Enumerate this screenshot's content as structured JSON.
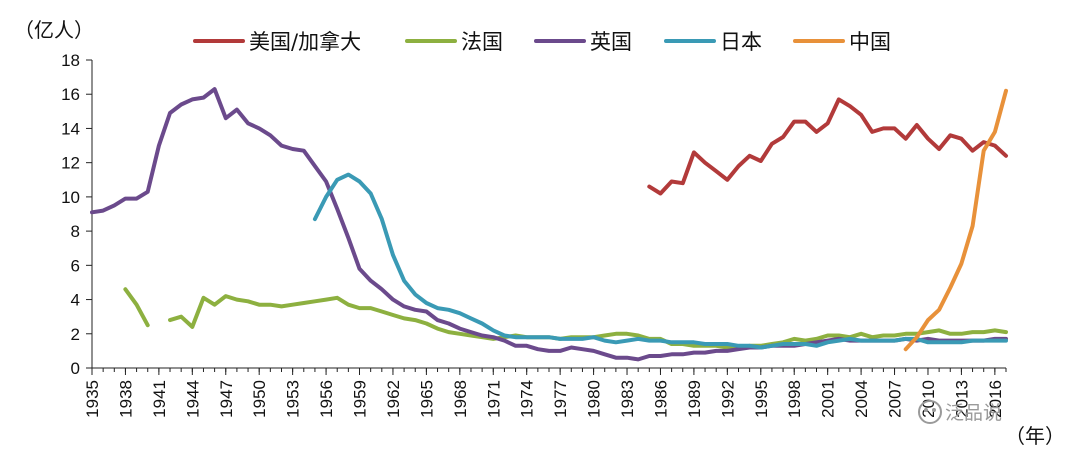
{
  "chart_data": {
    "type": "line",
    "ylabel": "（亿人）",
    "xlabel": "（年）",
    "ylim": [
      0,
      18
    ],
    "yticks": [
      0,
      2,
      4,
      6,
      8,
      10,
      12,
      14,
      16,
      18
    ],
    "xlim": [
      1935,
      2017
    ],
    "xticks": [
      1935,
      1938,
      1941,
      1944,
      1947,
      1950,
      1953,
      1956,
      1959,
      1962,
      1965,
      1968,
      1971,
      1974,
      1977,
      1980,
      1983,
      1986,
      1989,
      1992,
      1995,
      1998,
      2001,
      2004,
      2007,
      2010,
      2013,
      2016
    ],
    "xtick_labels": [
      "1935",
      "1938",
      "1941",
      "1944",
      "1947",
      "1950",
      "1953",
      "1956",
      "1959",
      "1962",
      "1965",
      "1968",
      "1971",
      "1974",
      "1977",
      "1980",
      "1983",
      "1986",
      "1989",
      "1992",
      "1995",
      "1998",
      "2001",
      "2004",
      "2007",
      "2010",
      "2013",
      "2016"
    ],
    "series": [
      {
        "name": "美国/加拿大",
        "color": "#b23a3a",
        "segments": [
          [
            [
              1985,
              10.6
            ],
            [
              1986,
              10.2
            ],
            [
              1987,
              10.9
            ],
            [
              1988,
              10.8
            ],
            [
              1989,
              12.6
            ],
            [
              1990,
              12.0
            ],
            [
              1991,
              11.5
            ],
            [
              1992,
              11.0
            ],
            [
              1993,
              11.8
            ],
            [
              1994,
              12.4
            ],
            [
              1995,
              12.1
            ],
            [
              1996,
              13.1
            ],
            [
              1997,
              13.5
            ],
            [
              1998,
              14.4
            ],
            [
              1999,
              14.4
            ],
            [
              2000,
              13.8
            ],
            [
              2001,
              14.3
            ],
            [
              2002,
              15.7
            ],
            [
              2003,
              15.3
            ],
            [
              2004,
              14.8
            ],
            [
              2005,
              13.8
            ],
            [
              2006,
              14.0
            ],
            [
              2007,
              14.0
            ],
            [
              2008,
              13.4
            ],
            [
              2009,
              14.2
            ],
            [
              2010,
              13.4
            ],
            [
              2011,
              12.8
            ],
            [
              2012,
              13.6
            ],
            [
              2013,
              13.4
            ],
            [
              2014,
              12.7
            ],
            [
              2015,
              13.2
            ],
            [
              2016,
              13.0
            ],
            [
              2017,
              12.4
            ]
          ]
        ]
      },
      {
        "name": "法国",
        "color": "#8db040",
        "segments": [
          [
            [
              1938,
              4.6
            ],
            [
              1939,
              3.7
            ],
            [
              1940,
              2.5
            ]
          ],
          [
            [
              1942,
              2.8
            ],
            [
              1943,
              3.0
            ],
            [
              1944,
              2.4
            ],
            [
              1945,
              4.1
            ],
            [
              1946,
              3.7
            ],
            [
              1947,
              4.2
            ],
            [
              1948,
              4.0
            ],
            [
              1949,
              3.9
            ],
            [
              1950,
              3.7
            ],
            [
              1951,
              3.7
            ],
            [
              1952,
              3.6
            ],
            [
              1953,
              3.7
            ],
            [
              1954,
              3.8
            ],
            [
              1955,
              3.9
            ],
            [
              1956,
              4.0
            ],
            [
              1957,
              4.1
            ],
            [
              1958,
              3.7
            ],
            [
              1959,
              3.5
            ],
            [
              1960,
              3.5
            ],
            [
              1961,
              3.3
            ],
            [
              1962,
              3.1
            ],
            [
              1963,
              2.9
            ],
            [
              1964,
              2.8
            ],
            [
              1965,
              2.6
            ],
            [
              1966,
              2.3
            ],
            [
              1967,
              2.1
            ],
            [
              1968,
              2.0
            ],
            [
              1969,
              1.9
            ],
            [
              1970,
              1.8
            ],
            [
              1971,
              1.7
            ],
            [
              1972,
              1.8
            ],
            [
              1973,
              1.9
            ],
            [
              1974,
              1.8
            ],
            [
              1975,
              1.8
            ],
            [
              1976,
              1.8
            ],
            [
              1977,
              1.7
            ],
            [
              1978,
              1.8
            ],
            [
              1979,
              1.8
            ],
            [
              1980,
              1.8
            ],
            [
              1981,
              1.9
            ],
            [
              1982,
              2.0
            ],
            [
              1983,
              2.0
            ],
            [
              1984,
              1.9
            ],
            [
              1985,
              1.7
            ],
            [
              1986,
              1.7
            ],
            [
              1987,
              1.4
            ],
            [
              1988,
              1.4
            ],
            [
              1989,
              1.3
            ],
            [
              1990,
              1.3
            ],
            [
              1991,
              1.3
            ],
            [
              1992,
              1.2
            ],
            [
              1993,
              1.2
            ],
            [
              1994,
              1.3
            ],
            [
              1995,
              1.3
            ],
            [
              1996,
              1.4
            ],
            [
              1997,
              1.5
            ],
            [
              1998,
              1.7
            ],
            [
              1999,
              1.6
            ],
            [
              2000,
              1.7
            ],
            [
              2001,
              1.9
            ],
            [
              2002,
              1.9
            ],
            [
              2003,
              1.8
            ],
            [
              2004,
              2.0
            ],
            [
              2005,
              1.8
            ],
            [
              2006,
              1.9
            ],
            [
              2007,
              1.9
            ],
            [
              2008,
              2.0
            ],
            [
              2009,
              2.0
            ],
            [
              2010,
              2.1
            ],
            [
              2011,
              2.2
            ],
            [
              2012,
              2.0
            ],
            [
              2013,
              2.0
            ],
            [
              2014,
              2.1
            ],
            [
              2015,
              2.1
            ],
            [
              2016,
              2.2
            ],
            [
              2017,
              2.1
            ]
          ]
        ]
      },
      {
        "name": "英国",
        "color": "#6b4a8c",
        "segments": [
          [
            [
              1935,
              9.1
            ],
            [
              1936,
              9.2
            ],
            [
              1937,
              9.5
            ],
            [
              1938,
              9.9
            ],
            [
              1939,
              9.9
            ],
            [
              1940,
              10.3
            ],
            [
              1941,
              13.0
            ],
            [
              1942,
              14.9
            ],
            [
              1943,
              15.4
            ],
            [
              1944,
              15.7
            ],
            [
              1945,
              15.8
            ],
            [
              1946,
              16.3
            ],
            [
              1947,
              14.6
            ],
            [
              1948,
              15.1
            ],
            [
              1949,
              14.3
            ],
            [
              1950,
              14.0
            ],
            [
              1951,
              13.6
            ],
            [
              1952,
              13.0
            ],
            [
              1953,
              12.8
            ],
            [
              1954,
              12.7
            ],
            [
              1955,
              11.8
            ],
            [
              1956,
              10.9
            ],
            [
              1957,
              9.3
            ],
            [
              1958,
              7.6
            ],
            [
              1959,
              5.8
            ],
            [
              1960,
              5.1
            ],
            [
              1961,
              4.6
            ],
            [
              1962,
              4.0
            ],
            [
              1963,
              3.6
            ],
            [
              1964,
              3.4
            ],
            [
              1965,
              3.3
            ],
            [
              1966,
              2.8
            ],
            [
              1967,
              2.6
            ],
            [
              1968,
              2.3
            ],
            [
              1969,
              2.1
            ],
            [
              1970,
              1.9
            ],
            [
              1971,
              1.8
            ],
            [
              1972,
              1.6
            ],
            [
              1973,
              1.3
            ],
            [
              1974,
              1.3
            ],
            [
              1975,
              1.1
            ],
            [
              1976,
              1.0
            ],
            [
              1977,
              1.0
            ],
            [
              1978,
              1.2
            ],
            [
              1979,
              1.1
            ],
            [
              1980,
              1.0
            ],
            [
              1981,
              0.8
            ],
            [
              1982,
              0.6
            ],
            [
              1983,
              0.6
            ],
            [
              1984,
              0.5
            ],
            [
              1985,
              0.7
            ],
            [
              1986,
              0.7
            ],
            [
              1987,
              0.8
            ],
            [
              1988,
              0.8
            ],
            [
              1989,
              0.9
            ],
            [
              1990,
              0.9
            ],
            [
              1991,
              1.0
            ],
            [
              1992,
              1.0
            ],
            [
              1993,
              1.1
            ],
            [
              1994,
              1.2
            ],
            [
              1995,
              1.2
            ],
            [
              1996,
              1.3
            ],
            [
              1997,
              1.3
            ],
            [
              1998,
              1.3
            ],
            [
              1999,
              1.4
            ],
            [
              2000,
              1.5
            ],
            [
              2001,
              1.6
            ],
            [
              2002,
              1.7
            ],
            [
              2003,
              1.6
            ],
            [
              2004,
              1.6
            ],
            [
              2005,
              1.6
            ],
            [
              2006,
              1.6
            ],
            [
              2007,
              1.6
            ],
            [
              2008,
              1.7
            ],
            [
              2009,
              1.6
            ],
            [
              2010,
              1.7
            ],
            [
              2011,
              1.6
            ],
            [
              2012,
              1.6
            ],
            [
              2013,
              1.6
            ],
            [
              2014,
              1.6
            ],
            [
              2015,
              1.6
            ],
            [
              2016,
              1.7
            ],
            [
              2017,
              1.7
            ]
          ]
        ]
      },
      {
        "name": "日本",
        "color": "#3a9ab5",
        "segments": [
          [
            [
              1955,
              8.7
            ],
            [
              1956,
              10.0
            ],
            [
              1957,
              11.0
            ],
            [
              1958,
              11.3
            ],
            [
              1959,
              10.9
            ],
            [
              1960,
              10.2
            ],
            [
              1961,
              8.7
            ],
            [
              1962,
              6.6
            ],
            [
              1963,
              5.1
            ],
            [
              1964,
              4.3
            ],
            [
              1965,
              3.8
            ],
            [
              1966,
              3.5
            ],
            [
              1967,
              3.4
            ],
            [
              1968,
              3.2
            ],
            [
              1969,
              2.9
            ],
            [
              1970,
              2.6
            ],
            [
              1971,
              2.2
            ],
            [
              1972,
              1.9
            ],
            [
              1973,
              1.8
            ],
            [
              1974,
              1.8
            ],
            [
              1975,
              1.8
            ],
            [
              1976,
              1.8
            ],
            [
              1977,
              1.7
            ],
            [
              1978,
              1.7
            ],
            [
              1979,
              1.7
            ],
            [
              1980,
              1.8
            ],
            [
              1981,
              1.6
            ],
            [
              1982,
              1.5
            ],
            [
              1983,
              1.6
            ],
            [
              1984,
              1.7
            ],
            [
              1985,
              1.6
            ],
            [
              1986,
              1.6
            ],
            [
              1987,
              1.5
            ],
            [
              1988,
              1.5
            ],
            [
              1989,
              1.5
            ],
            [
              1990,
              1.4
            ],
            [
              1991,
              1.4
            ],
            [
              1992,
              1.4
            ],
            [
              1993,
              1.3
            ],
            [
              1994,
              1.3
            ],
            [
              1995,
              1.2
            ],
            [
              1996,
              1.3
            ],
            [
              1997,
              1.4
            ],
            [
              1998,
              1.4
            ],
            [
              1999,
              1.4
            ],
            [
              2000,
              1.3
            ],
            [
              2001,
              1.5
            ],
            [
              2002,
              1.6
            ],
            [
              2003,
              1.7
            ],
            [
              2004,
              1.6
            ],
            [
              2005,
              1.6
            ],
            [
              2006,
              1.6
            ],
            [
              2007,
              1.6
            ],
            [
              2008,
              1.7
            ],
            [
              2009,
              1.7
            ],
            [
              2010,
              1.5
            ],
            [
              2011,
              1.5
            ],
            [
              2012,
              1.5
            ],
            [
              2013,
              1.5
            ],
            [
              2014,
              1.6
            ],
            [
              2015,
              1.6
            ],
            [
              2016,
              1.6
            ],
            [
              2017,
              1.6
            ]
          ]
        ]
      },
      {
        "name": "中国",
        "color": "#e8913a",
        "segments": [
          [
            [
              2008,
              1.1
            ],
            [
              2009,
              1.8
            ],
            [
              2010,
              2.8
            ],
            [
              2011,
              3.4
            ],
            [
              2012,
              4.7
            ],
            [
              2013,
              6.1
            ],
            [
              2014,
              8.3
            ],
            [
              2015,
              12.7
            ],
            [
              2016,
              13.8
            ],
            [
              2017,
              16.2
            ]
          ]
        ]
      }
    ]
  },
  "watermark": "泛品说"
}
